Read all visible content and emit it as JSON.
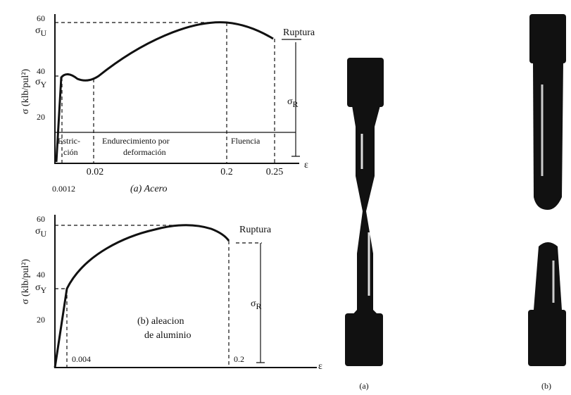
{
  "top_diagram": {
    "y_label": "σ (klb/pul²)",
    "y_ticks": [
      "60",
      "40",
      "20"
    ],
    "sigma_u": {
      "symbol": "σ",
      "sub": "U"
    },
    "sigma_y": {
      "symbol": "σ",
      "sub": "Y"
    },
    "sigma_r": {
      "symbol": "σ",
      "sub": "R"
    },
    "rupture": "Ruptura",
    "regions": [
      "Estric-",
      "ción",
      "Endurecimiento por",
      "deformación",
      "Fluencia"
    ],
    "x_ticks": [
      "0.02",
      "0.2",
      "0.25"
    ],
    "x_label": "ε",
    "small_tick": "0.0012",
    "caption": "(a) Acero"
  },
  "bottom_diagram": {
    "y_label": "σ (klb/pul²)",
    "y_ticks": [
      "60",
      "40",
      "20"
    ],
    "sigma_u": {
      "symbol": "σ",
      "sub": "U"
    },
    "sigma_y": {
      "symbol": "σ",
      "sub": "Y"
    },
    "sigma_r": {
      "symbol": "σ",
      "sub": "R"
    },
    "rupture": "Ruptura",
    "caption": [
      "(b) aleacion",
      "de aluminio"
    ],
    "x_ticks": [
      "0.004",
      "0.2"
    ],
    "x_label": "ε"
  },
  "photos": {
    "left_caption": "(a)",
    "right_caption": "(b)"
  }
}
